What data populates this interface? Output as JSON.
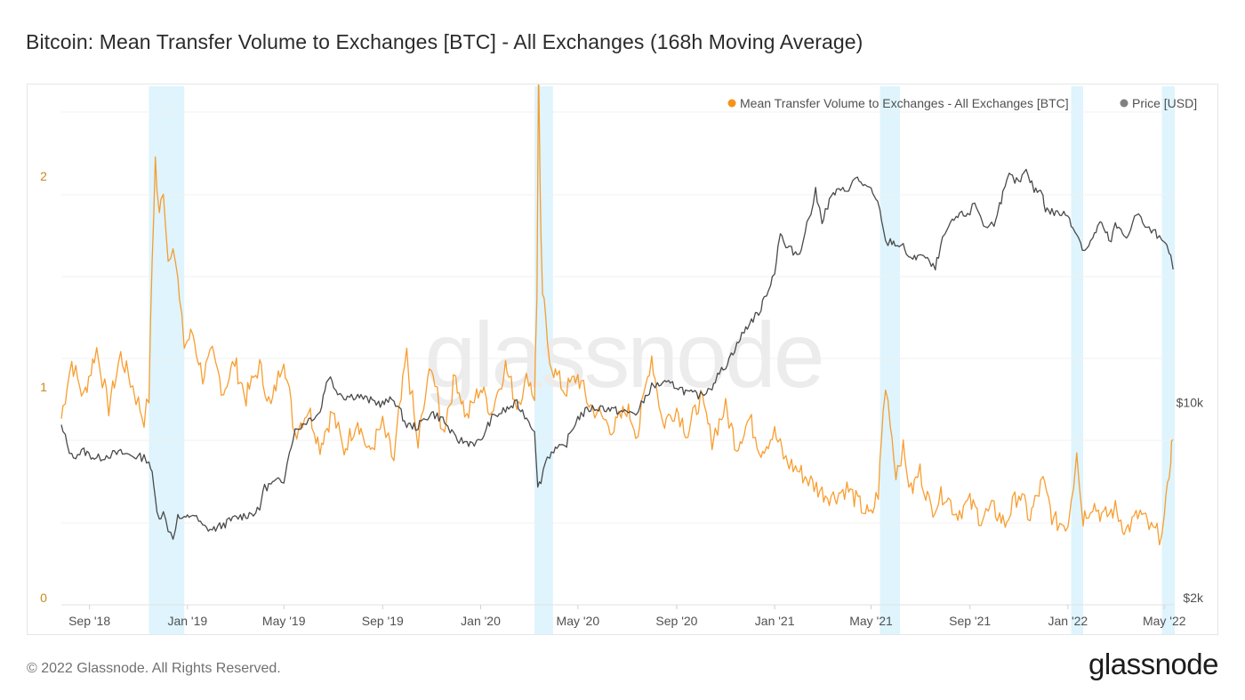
{
  "page": {
    "title": "Bitcoin: Mean Transfer Volume to Exchanges [BTC] - All Exchanges (168h Moving Average)",
    "copyright": "© 2022 Glassnode. All Rights Reserved.",
    "logo_text": "glassnode",
    "watermark": "glassnode"
  },
  "colors": {
    "volume": "#f7931a",
    "price": "#4a4a4a",
    "highlight": "#dff4fd",
    "grid": "#f0f0f0"
  },
  "chart_data": {
    "type": "line",
    "title": "Bitcoin: Mean Transfer Volume to Exchanges [BTC] - All Exchanges (168h Moving Average)",
    "x_range": [
      "2018-07-28",
      "2022-05-14"
    ],
    "x_ticks": [
      {
        "date": "2018-09-01",
        "label": "Sep '18"
      },
      {
        "date": "2019-01-01",
        "label": "Jan '19"
      },
      {
        "date": "2019-05-01",
        "label": "May '19"
      },
      {
        "date": "2019-09-01",
        "label": "Sep '19"
      },
      {
        "date": "2020-01-01",
        "label": "Jan '20"
      },
      {
        "date": "2020-05-01",
        "label": "May '20"
      },
      {
        "date": "2020-09-01",
        "label": "Sep '20"
      },
      {
        "date": "2021-01-01",
        "label": "Jan '21"
      },
      {
        "date": "2021-05-01",
        "label": "May '21"
      },
      {
        "date": "2021-09-01",
        "label": "Sep '21"
      },
      {
        "date": "2022-01-01",
        "label": "Jan '22"
      },
      {
        "date": "2022-05-01",
        "label": "May '22"
      }
    ],
    "y_left": {
      "scale": "linear",
      "range": [
        0,
        2.4
      ],
      "ticks": [
        {
          "value": 0,
          "label": "0"
        },
        {
          "value": 1,
          "label": "1"
        },
        {
          "value": 2,
          "label": "2"
        }
      ]
    },
    "y_right": {
      "scale": "log",
      "range": [
        2000,
        130000
      ],
      "ticks": [
        {
          "value": 2000,
          "label": "$2k"
        },
        {
          "value": 10000,
          "label": "$10k"
        }
      ]
    },
    "legend": {
      "position": "top-right",
      "items": [
        {
          "name": "Mean Transfer Volume to Exchanges - All Exchanges [BTC]",
          "color": "#f7931a"
        },
        {
          "name": "Price [USD]",
          "color": "#808080"
        }
      ]
    },
    "highlight_ranges": [
      [
        "2018-11-14",
        "2018-12-28"
      ],
      [
        "2020-03-08",
        "2020-03-31"
      ],
      [
        "2021-05-12",
        "2021-06-06"
      ],
      [
        "2022-01-05",
        "2022-01-20"
      ],
      [
        "2022-04-28",
        "2022-05-14"
      ]
    ],
    "series": [
      {
        "name": "Mean Transfer Volume to Exchanges - All Exchanges [BTC]",
        "axis": "left",
        "x": [
          "2018-07-28",
          "2018-08-10",
          "2018-08-25",
          "2018-09-10",
          "2018-09-25",
          "2018-10-10",
          "2018-10-25",
          "2018-11-08",
          "2018-11-14",
          "2018-11-18",
          "2018-11-22",
          "2018-11-27",
          "2018-12-02",
          "2018-12-08",
          "2018-12-14",
          "2018-12-20",
          "2018-12-28",
          "2019-01-08",
          "2019-01-20",
          "2019-02-01",
          "2019-02-15",
          "2019-03-01",
          "2019-03-15",
          "2019-04-01",
          "2019-04-15",
          "2019-05-01",
          "2019-05-15",
          "2019-06-01",
          "2019-06-15",
          "2019-07-01",
          "2019-07-15",
          "2019-08-01",
          "2019-08-15",
          "2019-09-01",
          "2019-09-15",
          "2019-10-01",
          "2019-10-15",
          "2019-11-01",
          "2019-11-15",
          "2019-12-01",
          "2019-12-15",
          "2020-01-01",
          "2020-01-15",
          "2020-02-01",
          "2020-02-15",
          "2020-03-01",
          "2020-03-08",
          "2020-03-11",
          "2020-03-13",
          "2020-03-15",
          "2020-03-18",
          "2020-03-22",
          "2020-03-27",
          "2020-04-01",
          "2020-04-15",
          "2020-05-01",
          "2020-05-15",
          "2020-06-01",
          "2020-06-15",
          "2020-07-01",
          "2020-07-15",
          "2020-08-01",
          "2020-08-15",
          "2020-09-01",
          "2020-09-15",
          "2020-10-01",
          "2020-10-15",
          "2020-11-01",
          "2020-11-15",
          "2020-12-01",
          "2020-12-15",
          "2021-01-01",
          "2021-01-15",
          "2021-02-01",
          "2021-02-15",
          "2021-03-01",
          "2021-03-15",
          "2021-04-01",
          "2021-04-15",
          "2021-05-01",
          "2021-05-10",
          "2021-05-14",
          "2021-05-19",
          "2021-05-25",
          "2021-06-01",
          "2021-06-10",
          "2021-06-20",
          "2021-07-01",
          "2021-07-15",
          "2021-08-01",
          "2021-08-15",
          "2021-09-01",
          "2021-09-15",
          "2021-10-01",
          "2021-10-15",
          "2021-11-01",
          "2021-11-15",
          "2021-12-01",
          "2021-12-15",
          "2022-01-01",
          "2022-01-08",
          "2022-01-12",
          "2022-01-16",
          "2022-01-20",
          "2022-02-01",
          "2022-02-15",
          "2022-03-01",
          "2022-03-15",
          "2022-04-01",
          "2022-04-15",
          "2022-04-25",
          "2022-05-01",
          "2022-05-05",
          "2022-05-09",
          "2022-05-12"
        ],
        "values": [
          0.85,
          1.12,
          0.95,
          1.18,
          0.9,
          1.15,
          1.0,
          0.85,
          0.95,
          1.6,
          2.08,
          1.8,
          1.95,
          1.6,
          1.7,
          1.5,
          1.2,
          1.25,
          1.05,
          1.15,
          0.98,
          1.12,
          0.95,
          1.1,
          0.9,
          1.15,
          0.78,
          0.9,
          0.72,
          0.88,
          0.7,
          0.85,
          0.68,
          0.82,
          0.65,
          1.15,
          0.72,
          1.12,
          0.78,
          1.05,
          0.85,
          1.0,
          0.88,
          1.1,
          0.92,
          1.05,
          0.95,
          1.4,
          2.55,
          1.9,
          1.45,
          1.3,
          1.15,
          1.08,
          0.98,
          1.05,
          0.92,
          0.85,
          0.8,
          0.9,
          0.78,
          1.15,
          0.82,
          0.9,
          0.78,
          0.95,
          0.75,
          0.9,
          0.72,
          0.85,
          0.7,
          0.78,
          0.65,
          0.6,
          0.55,
          0.5,
          0.48,
          0.52,
          0.45,
          0.38,
          0.5,
          0.75,
          1.0,
          0.85,
          0.6,
          0.7,
          0.5,
          0.6,
          0.42,
          0.5,
          0.4,
          0.45,
          0.38,
          0.42,
          0.35,
          0.5,
          0.38,
          0.55,
          0.36,
          0.35,
          0.55,
          0.72,
          0.5,
          0.38,
          0.45,
          0.38,
          0.42,
          0.32,
          0.4,
          0.32,
          0.3,
          0.38,
          0.5,
          0.68,
          0.75
        ]
      },
      {
        "name": "Price [USD]",
        "axis": "right",
        "x": [
          "2018-07-28",
          "2018-08-10",
          "2018-08-25",
          "2018-09-10",
          "2018-09-25",
          "2018-10-10",
          "2018-10-25",
          "2018-11-08",
          "2018-11-14",
          "2018-11-18",
          "2018-11-22",
          "2018-11-27",
          "2018-12-02",
          "2018-12-08",
          "2018-12-14",
          "2018-12-20",
          "2018-12-28",
          "2019-01-08",
          "2019-01-20",
          "2019-02-01",
          "2019-02-15",
          "2019-03-01",
          "2019-03-15",
          "2019-04-01",
          "2019-04-05",
          "2019-04-15",
          "2019-05-01",
          "2019-05-15",
          "2019-06-01",
          "2019-06-15",
          "2019-06-26",
          "2019-07-05",
          "2019-07-15",
          "2019-08-01",
          "2019-08-15",
          "2019-09-01",
          "2019-09-15",
          "2019-10-01",
          "2019-10-15",
          "2019-11-01",
          "2019-11-15",
          "2019-12-01",
          "2019-12-15",
          "2020-01-01",
          "2020-01-15",
          "2020-02-01",
          "2020-02-15",
          "2020-03-01",
          "2020-03-08",
          "2020-03-12",
          "2020-03-16",
          "2020-03-22",
          "2020-04-01",
          "2020-04-15",
          "2020-05-01",
          "2020-05-15",
          "2020-06-01",
          "2020-06-15",
          "2020-07-01",
          "2020-07-15",
          "2020-08-01",
          "2020-08-15",
          "2020-09-01",
          "2020-09-15",
          "2020-10-01",
          "2020-10-15",
          "2020-11-01",
          "2020-11-15",
          "2020-12-01",
          "2020-12-15",
          "2021-01-01",
          "2021-01-08",
          "2021-01-15",
          "2021-02-01",
          "2021-02-15",
          "2021-02-21",
          "2021-03-01",
          "2021-03-15",
          "2021-04-01",
          "2021-04-14",
          "2021-05-01",
          "2021-05-12",
          "2021-05-19",
          "2021-05-25",
          "2021-06-10",
          "2021-06-22",
          "2021-07-01",
          "2021-07-20",
          "2021-08-01",
          "2021-08-15",
          "2021-09-01",
          "2021-09-07",
          "2021-09-21",
          "2021-10-01",
          "2021-10-15",
          "2021-10-20",
          "2021-11-01",
          "2021-11-10",
          "2021-11-20",
          "2021-12-01",
          "2021-12-04",
          "2021-12-15",
          "2022-01-01",
          "2022-01-10",
          "2022-01-22",
          "2022-02-01",
          "2022-02-10",
          "2022-02-24",
          "2022-03-01",
          "2022-03-15",
          "2022-03-28",
          "2022-04-10",
          "2022-04-25",
          "2022-05-01",
          "2022-05-07",
          "2022-05-12"
        ],
        "values": [
          8200,
          6400,
          6700,
          6300,
          6500,
          6600,
          6450,
          6350,
          6200,
          5500,
          4500,
          3900,
          4000,
          3550,
          3300,
          3900,
          3800,
          4000,
          3600,
          3500,
          3650,
          3850,
          3950,
          4100,
          4900,
          5100,
          5300,
          7900,
          8700,
          9200,
          12500,
          11200,
          10500,
          10600,
          10200,
          9900,
          10300,
          8300,
          8200,
          9200,
          8700,
          7400,
          7200,
          7200,
          8800,
          9400,
          9900,
          8600,
          8000,
          4900,
          5300,
          6200,
          6800,
          6900,
          8800,
          9500,
          9600,
          9400,
          9200,
          9200,
          11400,
          11700,
          11500,
          10800,
          10600,
          11500,
          13600,
          16000,
          19300,
          21500,
          29000,
          40500,
          36000,
          34000,
          48000,
          57000,
          45000,
          56000,
          58000,
          63500,
          57000,
          50000,
          37000,
          38000,
          36000,
          32000,
          34500,
          30000,
          40000,
          46000,
          48000,
          52000,
          42000,
          44000,
          58000,
          65000,
          61000,
          67000,
          58000,
          57000,
          49000,
          48000,
          47000,
          41500,
          35000,
          38500,
          44000,
          37500,
          43000,
          39000,
          47500,
          42000,
          39500,
          38500,
          35500,
          30000
        ]
      }
    ]
  }
}
